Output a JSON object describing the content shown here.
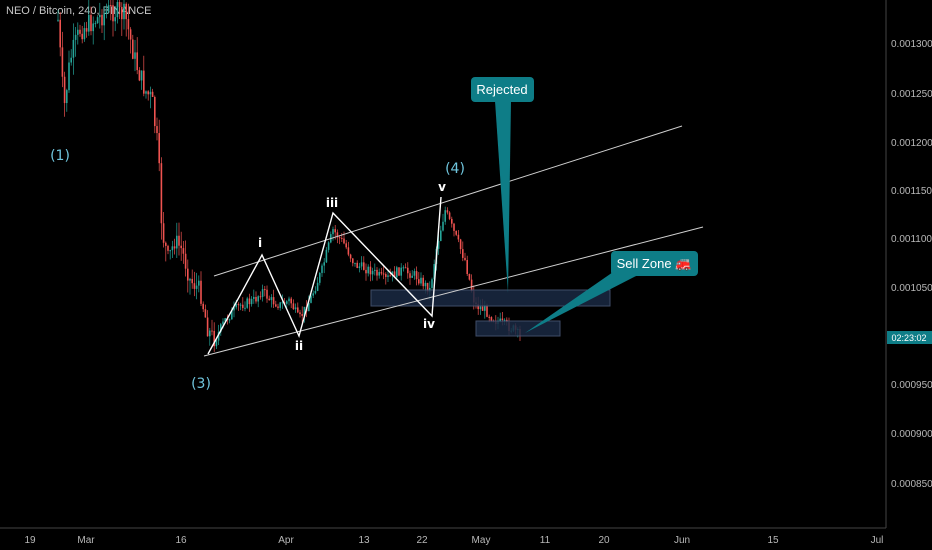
{
  "header": {
    "symbol": "NEO / Bitcoin, 240, BINANCE"
  },
  "chart_data": {
    "type": "candlestick",
    "y_scale": {
      "min": 0.00079,
      "max": 0.00134
    },
    "price_ticks": [
      "0.001300",
      "0.001250",
      "0.001200",
      "0.001150",
      "0.001100",
      "0.001050",
      "0.000950",
      "0.000900",
      "0.000850"
    ],
    "current_time_label": "02:23:02",
    "current_price": 0.001005,
    "date_ticks": [
      "19",
      "Mar",
      "16",
      "Apr",
      "13",
      "22",
      "May",
      "11",
      "20",
      "Jun",
      "15",
      "Jul"
    ],
    "wave_labels": [
      "i",
      "ii",
      "iii",
      "iv",
      "v"
    ],
    "degree_labels": [
      "(1)",
      "(3)",
      "(4)"
    ],
    "callouts": {
      "rejected": "Rejected",
      "sell_zone": "Sell Zone 🚒"
    },
    "colors": {
      "up": "#26a69a",
      "down": "#ef5350",
      "channel": "#d0d0d0",
      "callout": "#0e7d87",
      "zone": "#1a2a44",
      "degree": "#6fc5dd"
    }
  }
}
